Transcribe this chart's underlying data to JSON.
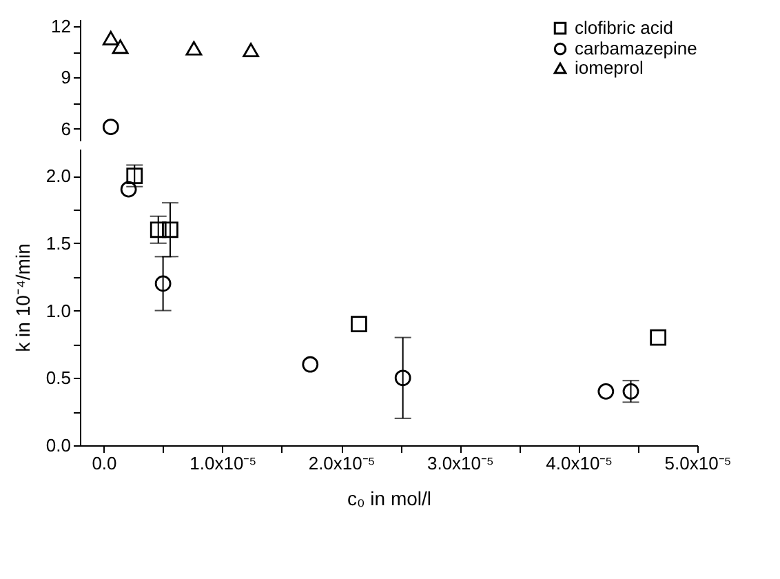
{
  "chart_data": [
    {
      "type": "scatter",
      "xlim": [
        -2e-06,
        5e-05
      ],
      "ylim": [
        5.3,
        12.4
      ],
      "yticks": [
        6,
        {
          "value": 7.5,
          "label": null
        },
        9,
        {
          "value": 10.5,
          "label": null
        },
        12
      ],
      "tick_labels": "y",
      "legend": "top right",
      "grid": false,
      "series": [
        {
          "name": "clofibric acid",
          "color": "#000000",
          "marker": "square"
        },
        {
          "name": "carbamazepine",
          "color": "#000000",
          "marker": "circle",
          "x": [
            6e-07
          ],
          "values": [
            6.1
          ]
        },
        {
          "name": "iomeprol",
          "color": "#000000",
          "marker": "triangle",
          "x": [
            6e-07,
            1.4e-06,
            7.6e-06,
            1.24e-05
          ],
          "values": [
            11.3,
            10.8,
            10.7,
            10.6
          ]
        }
      ]
    },
    {
      "type": "scatter",
      "xlabel": "c₀ in mol/l",
      "ylabel": "k in 10⁻⁴/min",
      "xlim": [
        -2e-06,
        5e-05
      ],
      "xticks": [
        {
          "value": 0,
          "label": "0.0"
        },
        {
          "value": 5e-06,
          "label": null
        },
        {
          "value": 1e-05,
          "label": "1.0x10⁻⁵"
        },
        {
          "value": 1.5e-05,
          "label": null
        },
        {
          "value": 2e-05,
          "label": "2.0x10⁻⁵"
        },
        {
          "value": 2.5e-05,
          "label": null
        },
        {
          "value": 3e-05,
          "label": "3.0x10⁻⁵"
        },
        {
          "value": 3.5e-05,
          "label": null
        },
        {
          "value": 4e-05,
          "label": "4.0x10⁻⁵"
        },
        {
          "value": 4.5e-05,
          "label": null
        },
        {
          "value": 5e-05,
          "label": "5.0x10⁻⁵"
        }
      ],
      "ylim": [
        0,
        2.2
      ],
      "yticks": [
        {
          "value": 0,
          "label": "0.0"
        },
        {
          "value": 0.25,
          "label": null
        },
        {
          "value": 0.5,
          "label": "0.5"
        },
        {
          "value": 0.75,
          "label": null
        },
        {
          "value": 1,
          "label": "1.0"
        },
        {
          "value": 1.25,
          "label": null
        },
        {
          "value": 1.5,
          "label": "1.5"
        },
        {
          "value": 1.75,
          "label": null
        },
        {
          "value": 2,
          "label": "2.0"
        }
      ],
      "grid": false,
      "series": [
        {
          "color": "#000000",
          "marker": "square",
          "x": [
            2.6e-06,
            4.6e-06,
            5.6e-06,
            2.15e-05,
            4.67e-05
          ],
          "values": [
            2.0,
            1.6,
            1.6,
            0.9,
            0.8
          ],
          "errors": [
            0.08,
            0.1,
            0.2,
            null,
            null
          ]
        },
        {
          "color": "#000000",
          "marker": "circle",
          "x": [
            2.1e-06,
            5e-06,
            1.74e-05,
            2.52e-05,
            4.23e-05,
            4.44e-05
          ],
          "values": [
            1.9,
            1.2,
            0.6,
            0.5,
            0.4,
            0.4
          ],
          "errors": [
            null,
            0.2,
            null,
            0.3,
            null,
            0.08
          ]
        }
      ]
    }
  ]
}
